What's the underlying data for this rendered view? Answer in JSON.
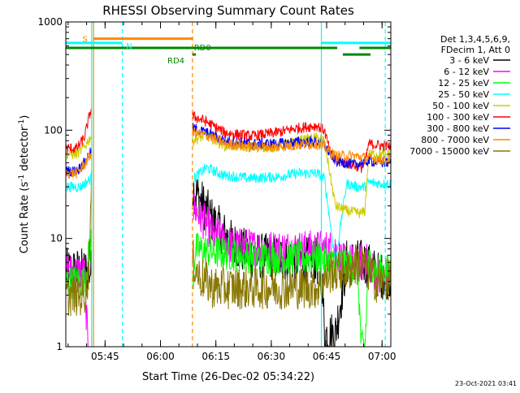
{
  "chart_data": {
    "type": "line",
    "title": "RHESSI Observing Summary Count Rates",
    "xlabel": "Start Time (26-Dec-02 05:34:22)",
    "ylabel_main": "Count Rate (s",
    "ylabel_sup": "-1",
    "ylabel_tail": " detector",
    "ylabel_sup2": "-1",
    "ylabel_close": ")",
    "yscale": "log",
    "ylim": [
      1,
      1000
    ],
    "xlim_minutes": [
      0,
      88
    ],
    "y_ticks": [
      {
        "value": 1,
        "label": "1"
      },
      {
        "value": 10,
        "label": "10"
      },
      {
        "value": 100,
        "label": "100"
      },
      {
        "value": 1000,
        "label": "1000"
      }
    ],
    "x_ticks": [
      {
        "minute": 10.63,
        "label": "05:45"
      },
      {
        "minute": 25.63,
        "label": "06:00"
      },
      {
        "minute": 40.63,
        "label": "06:15"
      },
      {
        "minute": 55.63,
        "label": "06:30"
      },
      {
        "minute": 70.63,
        "label": "06:45"
      },
      {
        "minute": 85.63,
        "label": "07:00"
      }
    ],
    "legend": {
      "header": [
        "Det 1,3,4,5,6,9,",
        "FDecim 1, Att 0"
      ],
      "entries": [
        {
          "label": "3 - 6 keV",
          "color": "#000000"
        },
        {
          "label": "6 - 12 keV",
          "color": "#ff00ff"
        },
        {
          "label": "12 - 25 keV",
          "color": "#00ff00"
        },
        {
          "label": "25 - 50 keV",
          "color": "#00ffff"
        },
        {
          "label": "50 - 100 keV",
          "color": "#cccc00"
        },
        {
          "label": "100 - 300 keV",
          "color": "#ff0000"
        },
        {
          "label": "300 - 800 keV",
          "color": "#0000ff"
        },
        {
          "label": "800 - 7000 keV",
          "color": "#ff8800"
        },
        {
          "label": "7000 - 15000 keV",
          "color": "#887700"
        }
      ]
    },
    "flags": [
      {
        "label": "S",
        "color": "#ff8800",
        "level": 700,
        "segments": [
          [
            7.5,
            34.5
          ]
        ]
      },
      {
        "label": "N",
        "color": "#00ffff",
        "level": 640,
        "segments": [
          [
            0,
            15.3
          ],
          [
            69.2,
            88
          ]
        ]
      },
      {
        "label": "RD0",
        "color": "#008800",
        "level": 575,
        "segments": [
          [
            0,
            73.5
          ],
          [
            79.5,
            88
          ]
        ]
      },
      {
        "label": "RD4",
        "color": "#008800",
        "level": 500,
        "segments": [
          [
            34.3,
            35.2
          ],
          [
            75,
            82.5
          ]
        ]
      }
    ],
    "vertical_markers": [
      {
        "minute": 7.0,
        "color": "#00ffff",
        "style": "solid"
      },
      {
        "minute": 7.5,
        "color": "#ff8800",
        "style": "solid"
      },
      {
        "minute": 15.3,
        "color": "#00ffff",
        "style": "dashed"
      },
      {
        "minute": 34.3,
        "color": "#ff8800",
        "style": "dashed"
      },
      {
        "minute": 69.2,
        "color": "#00ffff",
        "style": "solid"
      },
      {
        "minute": 86.5,
        "color": "#00ffff",
        "style": "dashed"
      }
    ],
    "data_gap_minutes": [
      7.5,
      34.3
    ],
    "series": [
      {
        "name": "3 - 6 keV",
        "color": "#000000",
        "segments": [
          [
            [
              0,
              5
            ],
            [
              7,
              5
            ]
          ],
          [
            [
              34.3,
              30
            ],
            [
              40,
              14
            ],
            [
              45,
              9
            ],
            [
              50,
              7
            ],
            [
              60,
              6.5
            ],
            [
              68,
              6.2
            ],
            [
              69.5,
              4
            ],
            [
              70,
              1.3
            ],
            [
              73,
              1.3
            ],
            [
              76,
              6
            ],
            [
              81,
              6
            ],
            [
              85,
              4.5
            ],
            [
              88,
              4.5
            ]
          ]
        ]
      },
      {
        "name": "6 - 12 keV",
        "color": "#ff00ff",
        "segments": [
          [
            [
              0,
              5
            ],
            [
              5,
              4.8
            ],
            [
              6,
              1
            ]
          ],
          [
            [
              34.3,
              20
            ],
            [
              40,
              11
            ],
            [
              45,
              8.5
            ],
            [
              55,
              8
            ],
            [
              65,
              8
            ],
            [
              73,
              8
            ],
            [
              75,
              6
            ],
            [
              82,
              6
            ],
            [
              84,
              4.6
            ],
            [
              88,
              4.6
            ]
          ]
        ]
      },
      {
        "name": "12 - 25 keV",
        "color": "#00ff00",
        "segments": [
          [
            [
              0,
              4
            ],
            [
              5,
              4
            ],
            [
              7,
              10
            ]
          ],
          [
            [
              34.3,
              3.5
            ],
            [
              35,
              8
            ],
            [
              40,
              7.5
            ],
            [
              50,
              6.8
            ],
            [
              60,
              6.6
            ],
            [
              69,
              6.6
            ],
            [
              73,
              5.5
            ],
            [
              75,
              6
            ],
            [
              79,
              5.5
            ],
            [
              80,
              1
            ],
            [
              81,
              1
            ],
            [
              82,
              6
            ],
            [
              85,
              5
            ],
            [
              88,
              5
            ]
          ]
        ]
      },
      {
        "name": "25 - 50 keV",
        "color": "#00ffff",
        "segments": [
          [
            [
              0,
              30
            ],
            [
              4,
              30
            ],
            [
              6,
              34
            ],
            [
              7,
              36
            ]
          ],
          [
            [
              34.3,
              35
            ],
            [
              38,
              45
            ],
            [
              43,
              38
            ],
            [
              50,
              36
            ],
            [
              57,
              37
            ],
            [
              63,
              40
            ],
            [
              68,
              40
            ],
            [
              70,
              36
            ],
            [
              73,
              6
            ],
            [
              76,
              32
            ],
            [
              79,
              30
            ],
            [
              81,
              30
            ],
            [
              82,
              33
            ],
            [
              86,
              32
            ],
            [
              88,
              32
            ]
          ]
        ]
      },
      {
        "name": "50 - 100 keV",
        "color": "#cccc00",
        "segments": [
          [
            [
              0,
              60
            ],
            [
              3,
              60
            ],
            [
              5,
              70
            ],
            [
              7,
              90
            ]
          ],
          [
            [
              34.3,
              80
            ],
            [
              38,
              90
            ],
            [
              43,
              72
            ],
            [
              50,
              70
            ],
            [
              57,
              70
            ],
            [
              63,
              80
            ],
            [
              68,
              85
            ],
            [
              70,
              80
            ],
            [
              73,
              20
            ],
            [
              76,
              18
            ],
            [
              80,
              17
            ],
            [
              81,
              18
            ],
            [
              82,
              60
            ],
            [
              88,
              60
            ]
          ]
        ]
      },
      {
        "name": "100 - 300 keV",
        "color": "#ff0000",
        "segments": [
          [
            [
              0,
              68
            ],
            [
              3,
              68
            ],
            [
              5,
              85
            ],
            [
              7,
              165
            ]
          ],
          [
            [
              34.3,
              135
            ],
            [
              38,
              120
            ],
            [
              43,
              95
            ],
            [
              50,
              88
            ],
            [
              57,
              95
            ],
            [
              63,
              105
            ],
            [
              68,
              110
            ],
            [
              70,
              100
            ],
            [
              72,
              55
            ],
            [
              76,
              50
            ],
            [
              80,
              45
            ],
            [
              81,
              48
            ],
            [
              82,
              75
            ],
            [
              88,
              70
            ]
          ]
        ]
      },
      {
        "name": "300 - 800 keV",
        "color": "#0000ff",
        "segments": [
          [
            [
              0,
              42
            ],
            [
              3,
              42
            ],
            [
              5,
              50
            ],
            [
              7,
              65
            ]
          ],
          [
            [
              34.3,
              105
            ],
            [
              38,
              95
            ],
            [
              43,
              80
            ],
            [
              50,
              75
            ],
            [
              57,
              75
            ],
            [
              63,
              78
            ],
            [
              68,
              78
            ],
            [
              70,
              72
            ],
            [
              73,
              52
            ],
            [
              78,
              48
            ],
            [
              82,
              52
            ],
            [
              86,
              50
            ],
            [
              88,
              50
            ]
          ]
        ]
      },
      {
        "name": "800 - 7000 keV",
        "color": "#ff8800",
        "segments": [
          [
            [
              0,
              40
            ],
            [
              3,
              40
            ],
            [
              5,
              48
            ],
            [
              7,
              62
            ]
          ],
          [
            [
              34.3,
              95
            ],
            [
              38,
              90
            ],
            [
              43,
              76
            ],
            [
              50,
              70
            ],
            [
              57,
              70
            ],
            [
              63,
              73
            ],
            [
              68,
              75
            ],
            [
              70,
              70
            ],
            [
              73,
              58
            ],
            [
              78,
              58
            ],
            [
              82,
              55
            ],
            [
              86,
              53
            ],
            [
              88,
              53
            ]
          ]
        ]
      },
      {
        "name": "7000 - 15000 keV",
        "color": "#887700",
        "segments": [
          [
            [
              0,
              3
            ],
            [
              5,
              3
            ],
            [
              6,
              4
            ],
            [
              7,
              30
            ]
          ],
          [
            [
              34.3,
              6.5
            ],
            [
              36,
              4.5
            ],
            [
              40,
              3.5
            ],
            [
              50,
              3.5
            ],
            [
              60,
              3.5
            ],
            [
              68,
              3.5
            ],
            [
              72,
              5
            ],
            [
              76,
              5
            ],
            [
              80,
              6
            ],
            [
              82,
              5
            ],
            [
              84,
              4
            ],
            [
              88,
              4
            ]
          ]
        ]
      }
    ],
    "timestamp": "23-Oct-2021 03:41"
  }
}
